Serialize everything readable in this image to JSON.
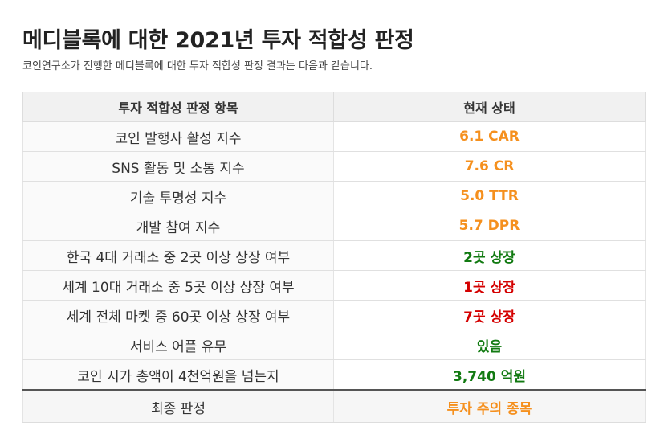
{
  "page": {
    "title": "메디블록에 대한 2021년 투자 적합성 판정",
    "subtitle": "코인연구소가 진행한 메디블록에 대한 투자 적합성 판정 결과는 다음과 같습니다."
  },
  "table": {
    "headers": [
      "투자 적합성 판정 항목",
      "현재 상태"
    ],
    "rows": [
      {
        "label": "코인 발행사 활성 지수",
        "value": "6.1 CAR",
        "color": "#f5901e"
      },
      {
        "label": "SNS 활동 및 소통 지수",
        "value": "7.6 CR",
        "color": "#f5901e"
      },
      {
        "label": "기술 투명성 지수",
        "value": "5.0 TTR",
        "color": "#f5901e"
      },
      {
        "label": "개발 참여 지수",
        "value": "5.7 DPR",
        "color": "#f5901e"
      },
      {
        "label": "한국 4대 거래소 중 2곳 이상 상장 여부",
        "value": "2곳 상장",
        "color": "#117a11"
      },
      {
        "label": "세계 10대 거래소 중 5곳 이상 상장 여부",
        "value": "1곳 상장",
        "color": "#d40000"
      },
      {
        "label": "세계 전체 마켓 중 60곳 이상 상장 여부",
        "value": "7곳 상장",
        "color": "#d40000"
      },
      {
        "label": "서비스 어플 유무",
        "value": "있음",
        "color": "#117a11"
      },
      {
        "label": "코인 시가 총액이 4천억원을 넘는지",
        "value": "3,740 억원",
        "color": "#117a11"
      }
    ],
    "final": {
      "label": "최종 판정",
      "value": "투자 주의 종목",
      "color": "#f5901e"
    }
  }
}
